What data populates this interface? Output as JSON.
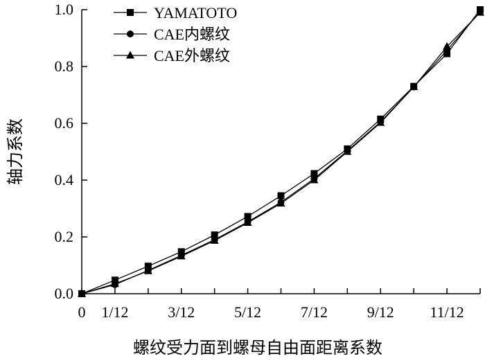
{
  "chart_data": {
    "type": "line",
    "xlabel": "螺纹受力面到螺母自由面距离系数",
    "ylabel": "轴力系数",
    "x": [
      0,
      1,
      2,
      3,
      4,
      5,
      6,
      7,
      8,
      9,
      10,
      11,
      12
    ],
    "x_ticks": [
      "0",
      "1/12",
      "3/12",
      "5/12",
      "7/12",
      "9/12",
      "11/12"
    ],
    "x_tick_positions": [
      0,
      1,
      3,
      5,
      7,
      9,
      11
    ],
    "xlim": [
      0,
      12
    ],
    "y_ticks": [
      "0.0",
      "0.2",
      "0.4",
      "0.6",
      "0.8",
      "1.0"
    ],
    "ylim": [
      0,
      1
    ],
    "grid": false,
    "legend_position": "top-left",
    "series": [
      {
        "name": "YAMATOTO",
        "marker": "square",
        "values": [
          0.0,
          0.048,
          0.097,
          0.148,
          0.207,
          0.272,
          0.345,
          0.423,
          0.51,
          0.615,
          0.73,
          0.845,
          1.0
        ]
      },
      {
        "name": "CAE内螺纹",
        "marker": "circle",
        "values": [
          0.0,
          0.032,
          0.082,
          0.135,
          0.19,
          0.253,
          0.322,
          0.405,
          0.503,
          0.605,
          0.728,
          0.857,
          0.993
        ]
      },
      {
        "name": "CAE外螺纹",
        "marker": "triangle",
        "values": [
          0.0,
          0.035,
          0.08,
          0.132,
          0.187,
          0.25,
          0.318,
          0.4,
          0.5,
          0.602,
          0.728,
          0.87,
          0.99
        ]
      }
    ],
    "colors": {
      "line": "#000000",
      "background": "#ffffff"
    }
  }
}
